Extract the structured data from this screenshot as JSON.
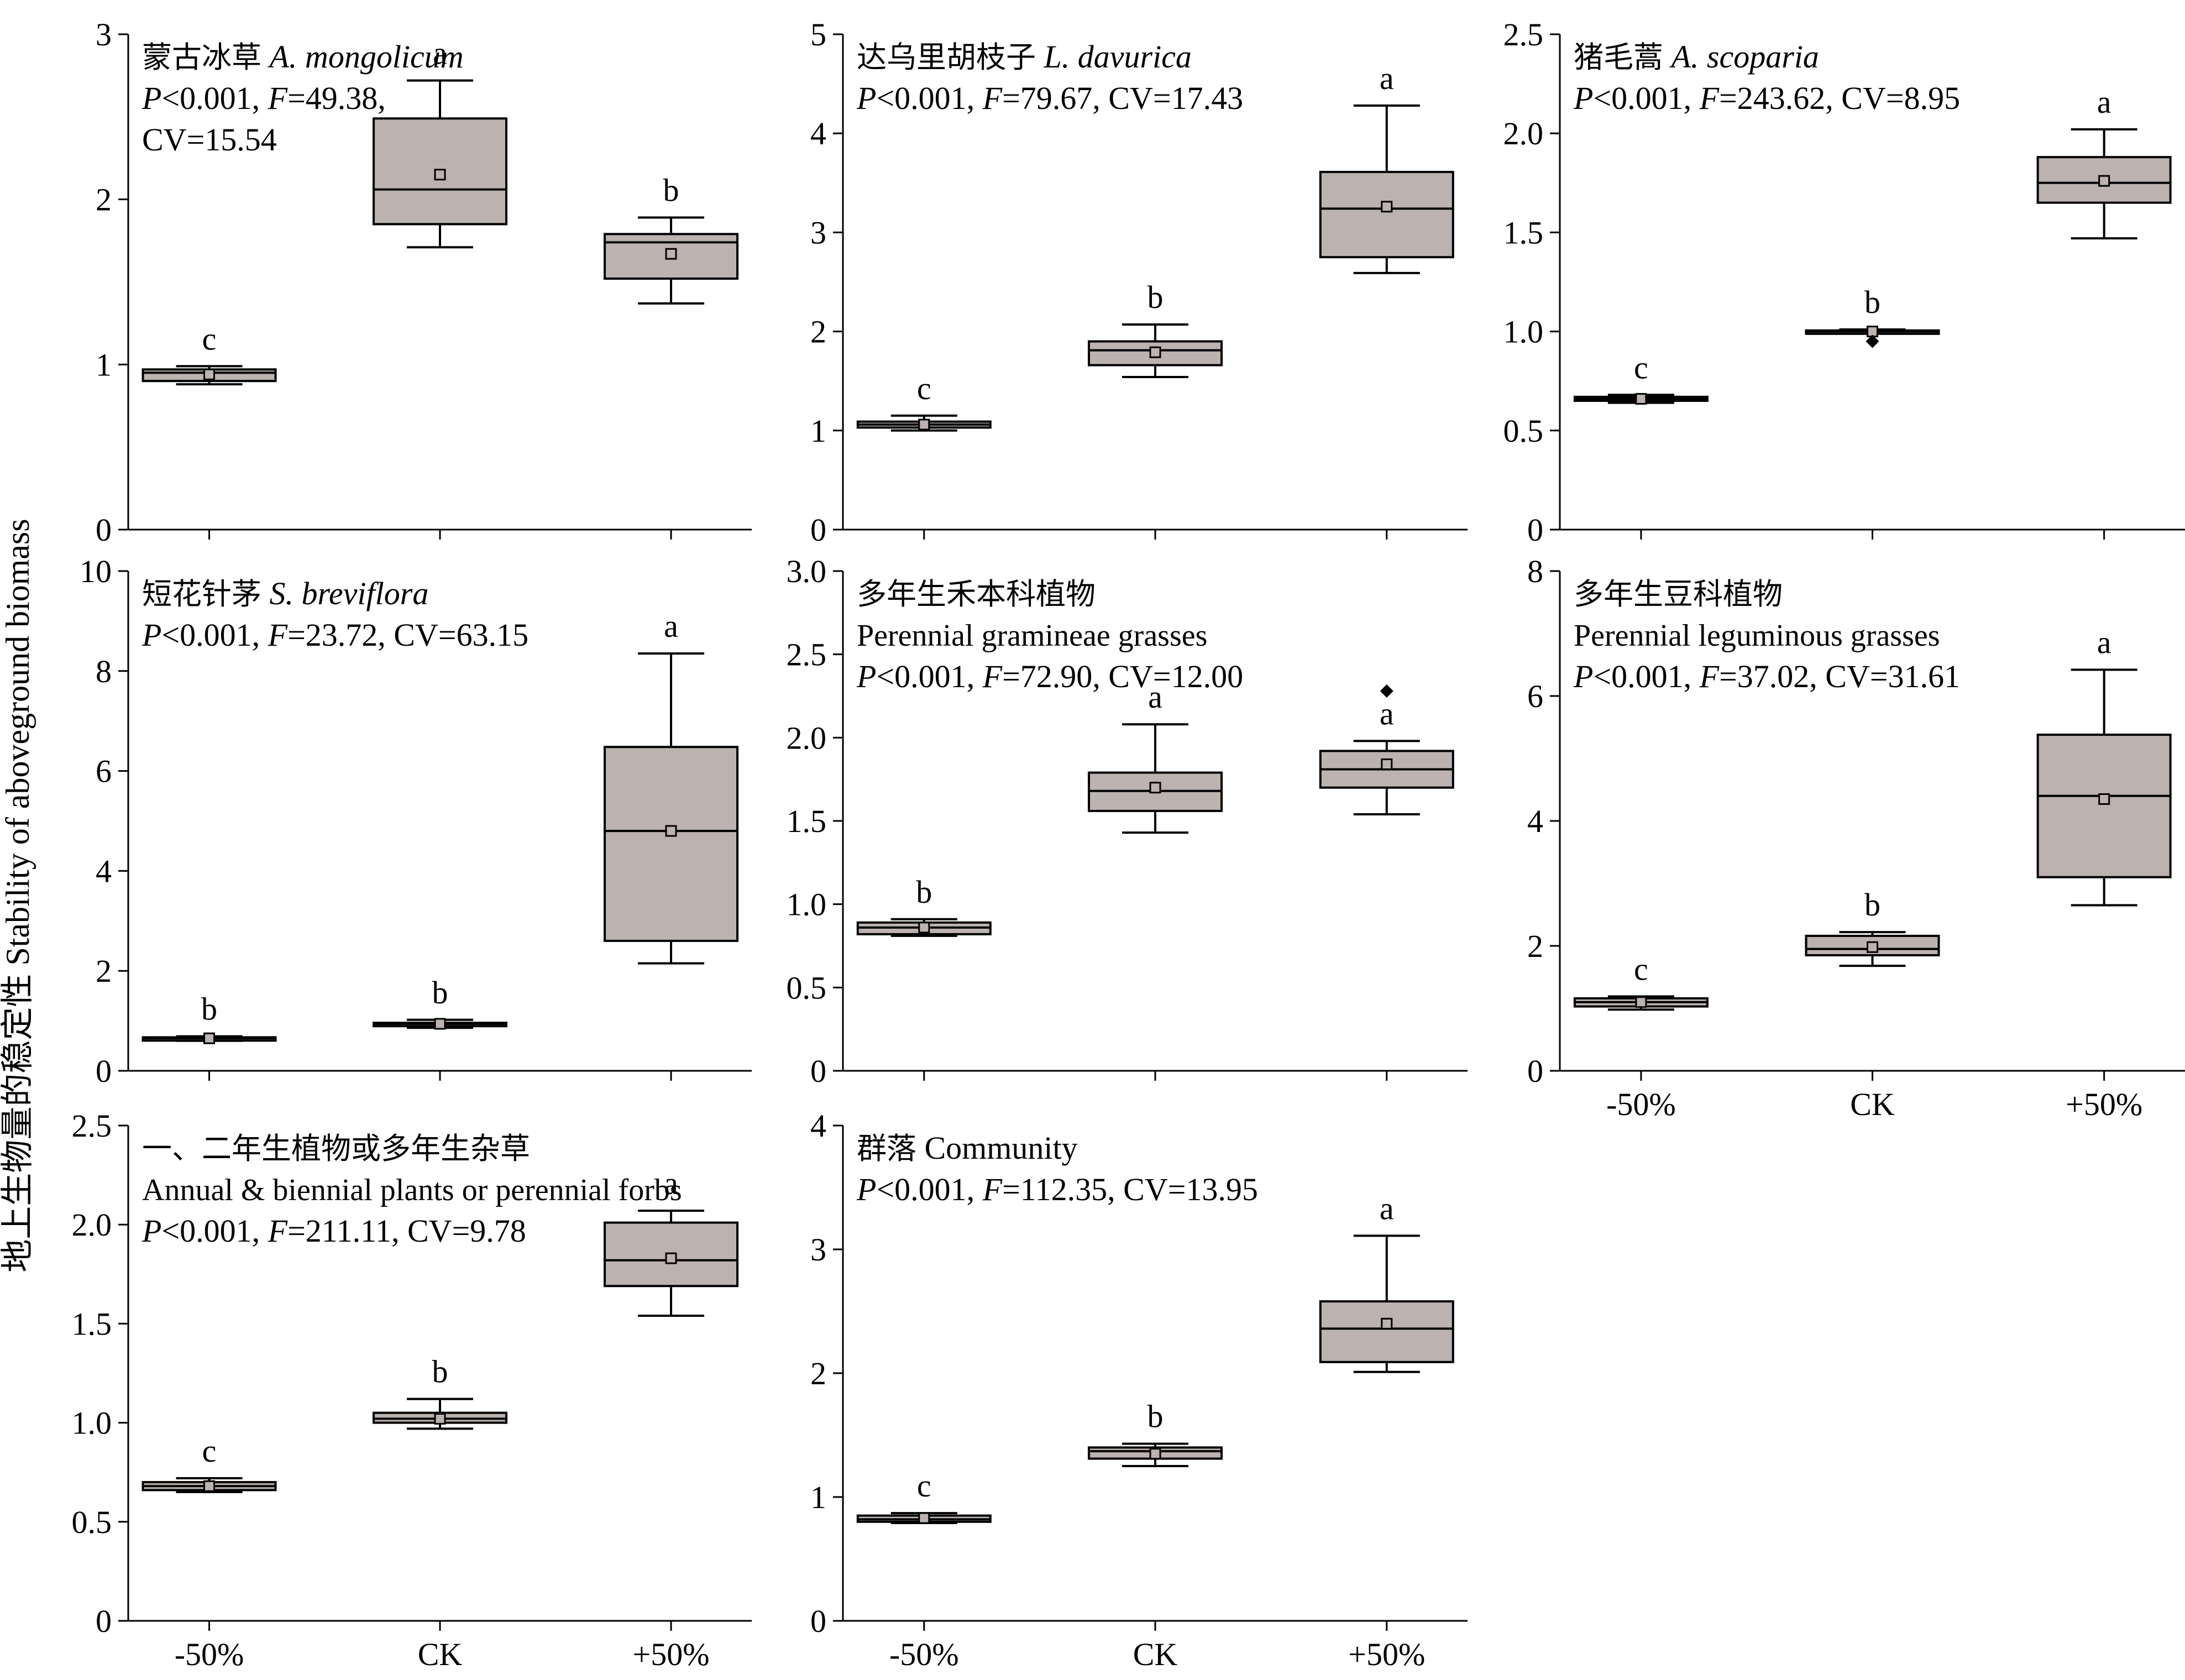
{
  "figure": {
    "ylabel": "地上生物量的稳定性 Stability of aboveground biomass",
    "x_categories": [
      "-50%",
      "CK",
      "+50%"
    ]
  },
  "colors": {
    "box_fill": "#bcb3b0",
    "stroke": "#000000",
    "background": "#ffffff"
  },
  "chart_data": [
    {
      "type": "boxplot",
      "title_cn": "蒙古冰草",
      "title_en": "A. mongolicum",
      "stats": [
        {
          "text": "P",
          "italic": true
        },
        {
          "text": "<0.001, "
        },
        {
          "text": "F",
          "italic": true
        },
        {
          "text": "=49.38,"
        }
      ],
      "stats2": [
        {
          "text": "CV=15.54"
        }
      ],
      "ylim": [
        0,
        3
      ],
      "yticks": [
        "0",
        "1",
        "2",
        "3"
      ],
      "categories": [
        "-50%",
        "CK",
        "+50%"
      ],
      "groups": [
        {
          "category": "-50%",
          "whisker_low": 0.88,
          "q1": 0.9,
          "median": 0.95,
          "q3": 0.97,
          "whisker_high": 0.99,
          "mean": 0.94,
          "outliers": [],
          "letter": "c"
        },
        {
          "category": "CK",
          "whisker_low": 1.71,
          "q1": 1.85,
          "median": 2.06,
          "q3": 2.49,
          "whisker_high": 2.72,
          "mean": 2.15,
          "outliers": [],
          "letter": "a"
        },
        {
          "category": "+50%",
          "whisker_low": 1.37,
          "q1": 1.52,
          "median": 1.74,
          "q3": 1.79,
          "whisker_high": 1.89,
          "mean": 1.67,
          "outliers": [],
          "letter": "b"
        }
      ]
    },
    {
      "type": "boxplot",
      "title_cn": "达乌里胡枝子",
      "title_en": "L. davurica",
      "stats": [
        {
          "text": "P",
          "italic": true
        },
        {
          "text": "<0.001, "
        },
        {
          "text": "F",
          "italic": true
        },
        {
          "text": "=79.67, CV=17.43"
        }
      ],
      "ylim": [
        0,
        5
      ],
      "yticks": [
        "0",
        "1",
        "2",
        "3",
        "4",
        "5"
      ],
      "categories": [
        "-50%",
        "CK",
        "+50%"
      ],
      "groups": [
        {
          "category": "-50%",
          "whisker_low": 1.0,
          "q1": 1.03,
          "median": 1.06,
          "q3": 1.09,
          "whisker_high": 1.15,
          "mean": 1.06,
          "outliers": [],
          "letter": "c"
        },
        {
          "category": "CK",
          "whisker_low": 1.54,
          "q1": 1.66,
          "median": 1.81,
          "q3": 1.9,
          "whisker_high": 2.07,
          "mean": 1.79,
          "outliers": [],
          "letter": "b"
        },
        {
          "category": "+50%",
          "whisker_low": 2.59,
          "q1": 2.75,
          "median": 3.24,
          "q3": 3.61,
          "whisker_high": 4.28,
          "mean": 3.26,
          "outliers": [],
          "letter": "a"
        }
      ]
    },
    {
      "type": "boxplot",
      "title_cn": "猪毛蒿",
      "title_en": "A. scoparia",
      "stats": [
        {
          "text": "P",
          "italic": true
        },
        {
          "text": "<0.001, "
        },
        {
          "text": "F",
          "italic": true
        },
        {
          "text": "=243.62, CV=8.95"
        }
      ],
      "ylim": [
        0,
        2.5
      ],
      "yticks": [
        "0",
        "0.5",
        "1.0",
        "1.5",
        "2.0",
        "2.5"
      ],
      "categories": [
        "-50%",
        "CK",
        "+50%"
      ],
      "groups": [
        {
          "category": "-50%",
          "whisker_low": 0.64,
          "q1": 0.65,
          "median": 0.66,
          "q3": 0.67,
          "whisker_high": 0.68,
          "mean": 0.66,
          "outliers": [],
          "letter": "c"
        },
        {
          "category": "CK",
          "whisker_low": 0.99,
          "q1": 0.995,
          "median": 1.0,
          "q3": 1.005,
          "whisker_high": 1.01,
          "mean": 1.0,
          "outliers": [
            0.95
          ],
          "letter": "b"
        },
        {
          "category": "+50%",
          "whisker_low": 1.47,
          "q1": 1.65,
          "median": 1.75,
          "q3": 1.88,
          "whisker_high": 2.02,
          "mean": 1.76,
          "outliers": [],
          "letter": "a"
        }
      ]
    },
    {
      "type": "boxplot",
      "title_cn": "短花针茅",
      "title_en": "S. breviflora",
      "stats": [
        {
          "text": "P",
          "italic": true
        },
        {
          "text": "<0.001, "
        },
        {
          "text": "F",
          "italic": true
        },
        {
          "text": "=23.72, CV=63.15"
        }
      ],
      "ylim": [
        0,
        10
      ],
      "yticks": [
        "0",
        "2",
        "4",
        "6",
        "8",
        "10"
      ],
      "categories": [
        "-50%",
        "CK",
        "+50%"
      ],
      "groups": [
        {
          "category": "-50%",
          "whisker_low": 0.6,
          "q1": 0.63,
          "median": 0.65,
          "q3": 0.67,
          "whisker_high": 0.69,
          "mean": 0.65,
          "outliers": [],
          "letter": "b"
        },
        {
          "category": "CK",
          "whisker_low": 0.86,
          "q1": 0.9,
          "median": 0.94,
          "q3": 0.96,
          "whisker_high": 1.02,
          "mean": 0.94,
          "outliers": [],
          "letter": "b"
        },
        {
          "category": "+50%",
          "whisker_low": 2.15,
          "q1": 2.6,
          "median": 4.8,
          "q3": 6.48,
          "whisker_high": 8.35,
          "mean": 4.8,
          "outliers": [],
          "letter": "a"
        }
      ]
    },
    {
      "type": "boxplot",
      "title_cn": "多年生禾本科植物",
      "title_en": "Perennial gramineae grasses",
      "stats": [
        {
          "text": "P",
          "italic": true
        },
        {
          "text": "<0.001, "
        },
        {
          "text": "F",
          "italic": true
        },
        {
          "text": "=72.90, CV=12.00"
        }
      ],
      "ylim": [
        0,
        3
      ],
      "yticks": [
        "0",
        "0.5",
        "1.0",
        "1.5",
        "2.0",
        "2.5",
        "3.0"
      ],
      "categories": [
        "-50%",
        "CK",
        "+50%"
      ],
      "groups": [
        {
          "category": "-50%",
          "whisker_low": 0.81,
          "q1": 0.82,
          "median": 0.86,
          "q3": 0.89,
          "whisker_high": 0.91,
          "mean": 0.86,
          "outliers": [],
          "letter": "b"
        },
        {
          "category": "CK",
          "whisker_low": 1.43,
          "q1": 1.56,
          "median": 1.68,
          "q3": 1.79,
          "whisker_high": 2.08,
          "mean": 1.7,
          "outliers": [],
          "letter": "a"
        },
        {
          "category": "+50%",
          "whisker_low": 1.54,
          "q1": 1.7,
          "median": 1.81,
          "q3": 1.92,
          "whisker_high": 1.98,
          "mean": 1.84,
          "outliers": [
            2.28
          ],
          "letter": "a"
        }
      ]
    },
    {
      "type": "boxplot",
      "title_cn": "多年生豆科植物",
      "title_en": "Perennial leguminous grasses",
      "stats": [
        {
          "text": "P",
          "italic": true
        },
        {
          "text": "<0.001, "
        },
        {
          "text": "F",
          "italic": true
        },
        {
          "text": "=37.02, CV=31.61"
        }
      ],
      "ylim": [
        0,
        8
      ],
      "yticks": [
        "0",
        "2",
        "4",
        "6",
        "8"
      ],
      "categories": [
        "-50%",
        "CK",
        "+50%"
      ],
      "groups": [
        {
          "category": "-50%",
          "whisker_low": 0.98,
          "q1": 1.03,
          "median": 1.1,
          "q3": 1.16,
          "whisker_high": 1.19,
          "mean": 1.1,
          "outliers": [],
          "letter": "c"
        },
        {
          "category": "CK",
          "whisker_low": 1.68,
          "q1": 1.85,
          "median": 1.95,
          "q3": 2.16,
          "whisker_high": 2.22,
          "mean": 1.98,
          "outliers": [],
          "letter": "b"
        },
        {
          "category": "+50%",
          "whisker_low": 2.65,
          "q1": 3.1,
          "median": 4.4,
          "q3": 5.38,
          "whisker_high": 6.42,
          "mean": 4.35,
          "outliers": [],
          "letter": "a"
        }
      ]
    },
    {
      "type": "boxplot",
      "title_cn": "一、二年生植物或多年生杂草",
      "title_en": "Annual & biennial plants or perennial forbs",
      "stats": [
        {
          "text": "P",
          "italic": true
        },
        {
          "text": "<0.001, "
        },
        {
          "text": "F",
          "italic": true
        },
        {
          "text": "=211.11, CV=9.78"
        }
      ],
      "ylim": [
        0,
        2.5
      ],
      "yticks": [
        "0",
        "0.5",
        "1.0",
        "1.5",
        "2.0",
        "2.5"
      ],
      "categories": [
        "-50%",
        "CK",
        "+50%"
      ],
      "groups": [
        {
          "category": "-50%",
          "whisker_low": 0.65,
          "q1": 0.66,
          "median": 0.68,
          "q3": 0.7,
          "whisker_high": 0.72,
          "mean": 0.68,
          "outliers": [],
          "letter": "c"
        },
        {
          "category": "CK",
          "whisker_low": 0.97,
          "q1": 1.0,
          "median": 1.02,
          "q3": 1.05,
          "whisker_high": 1.12,
          "mean": 1.02,
          "outliers": [],
          "letter": "b"
        },
        {
          "category": "+50%",
          "whisker_low": 1.54,
          "q1": 1.69,
          "median": 1.82,
          "q3": 2.01,
          "whisker_high": 2.07,
          "mean": 1.83,
          "outliers": [],
          "letter": "a"
        }
      ]
    },
    {
      "type": "boxplot",
      "title_cn": "群落",
      "title_en": "Community",
      "stats": [
        {
          "text": "P",
          "italic": true
        },
        {
          "text": "<0.001, "
        },
        {
          "text": "F",
          "italic": true
        },
        {
          "text": "=112.35, CV=13.95"
        }
      ],
      "ylim": [
        0,
        4
      ],
      "yticks": [
        "0",
        "1",
        "2",
        "3",
        "4"
      ],
      "categories": [
        "-50%",
        "CK",
        "+50%"
      ],
      "groups": [
        {
          "category": "-50%",
          "whisker_low": 0.79,
          "q1": 0.8,
          "median": 0.82,
          "q3": 0.85,
          "whisker_high": 0.87,
          "mean": 0.83,
          "outliers": [],
          "letter": "c"
        },
        {
          "category": "CK",
          "whisker_low": 1.25,
          "q1": 1.31,
          "median": 1.37,
          "q3": 1.4,
          "whisker_high": 1.43,
          "mean": 1.35,
          "outliers": [],
          "letter": "b"
        },
        {
          "category": "+50%",
          "whisker_low": 2.01,
          "q1": 2.09,
          "median": 2.36,
          "q3": 2.58,
          "whisker_high": 3.11,
          "mean": 2.4,
          "outliers": [],
          "letter": "a"
        }
      ]
    }
  ]
}
